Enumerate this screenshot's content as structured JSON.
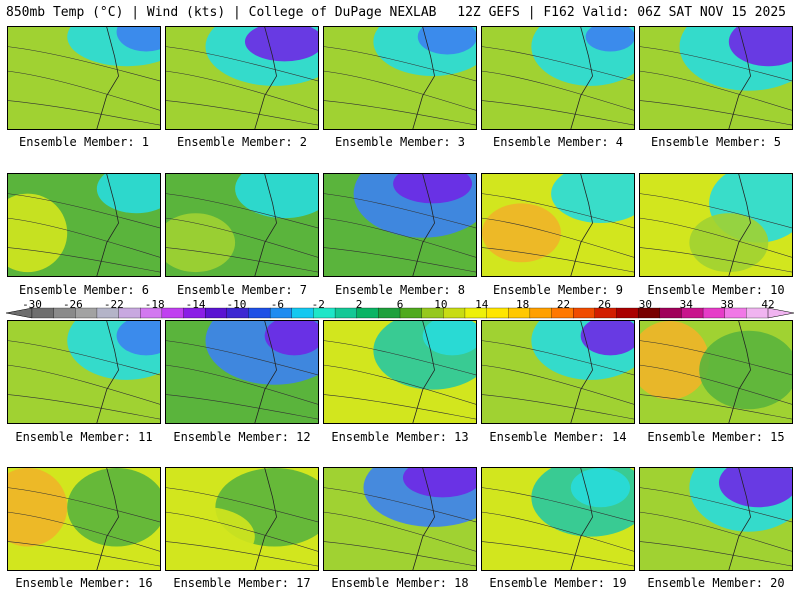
{
  "header": {
    "left_title": "850mb Temp (°C) | Wind (kts) | College of DuPage NEXLAB",
    "right_title": "12Z GEFS | F162 Valid: 06Z SAT NOV 15 2025"
  },
  "panels": [
    {
      "label": "Ensemble Member: 1"
    },
    {
      "label": "Ensemble Member: 2"
    },
    {
      "label": "Ensemble Member: 3"
    },
    {
      "label": "Ensemble Member: 4"
    },
    {
      "label": "Ensemble Member: 5"
    },
    {
      "label": "Ensemble Member: 6"
    },
    {
      "label": "Ensemble Member: 7"
    },
    {
      "label": "Ensemble Member: 8"
    },
    {
      "label": "Ensemble Member: 9"
    },
    {
      "label": "Ensemble Member: 10"
    },
    {
      "label": "Ensemble Member: 11"
    },
    {
      "label": "Ensemble Member: 12"
    },
    {
      "label": "Ensemble Member: 13"
    },
    {
      "label": "Ensemble Member: 14"
    },
    {
      "label": "Ensemble Member: 15"
    },
    {
      "label": "Ensemble Member: 16"
    },
    {
      "label": "Ensemble Member: 17"
    },
    {
      "label": "Ensemble Member: 18"
    },
    {
      "label": "Ensemble Member: 19"
    },
    {
      "label": "Ensemble Member: 20"
    }
  ],
  "colorbar": {
    "labels": [
      "-30",
      "-26",
      "-22",
      "-18",
      "-14",
      "-10",
      "-6",
      "-2",
      "2",
      "6",
      "10",
      "14",
      "18",
      "22",
      "26",
      "30",
      "34",
      "38",
      "42"
    ],
    "colors": [
      "#6e6e6e",
      "#8a8a8a",
      "#a2a2a2",
      "#b4b4c8",
      "#c8a8e0",
      "#d278f0",
      "#c040f0",
      "#8a1ee6",
      "#5a14d2",
      "#3c28d2",
      "#1e50e6",
      "#1e8cf0",
      "#14c8f0",
      "#1ee6c8",
      "#14c896",
      "#0ab464",
      "#1ea03c",
      "#50aa1e",
      "#96c81e",
      "#c8dc14",
      "#eef00a",
      "#ffe600",
      "#ffc800",
      "#ffa000",
      "#ff7800",
      "#f04b00",
      "#d21e00",
      "#aa0000",
      "#780000",
      "#a0005a",
      "#c8148c",
      "#e63cc8",
      "#f078e6",
      "#f0b4f0"
    ]
  }
}
